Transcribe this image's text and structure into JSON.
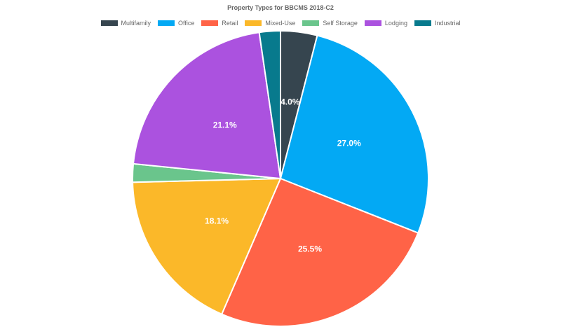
{
  "chart_data": {
    "type": "pie",
    "title": "Property Types for BBCMS 2018-C2",
    "legend_position": "top",
    "series": [
      {
        "name": "Multifamily",
        "value": 4.0,
        "color": "#36454f",
        "label": "4.0%"
      },
      {
        "name": "Office",
        "value": 27.0,
        "color": "#03a9f4",
        "label": "27.0%"
      },
      {
        "name": "Retail",
        "value": 25.5,
        "color": "#ff6347",
        "label": "25.5%"
      },
      {
        "name": "Mixed-Use",
        "value": 18.1,
        "color": "#fbb829",
        "label": "18.1%"
      },
      {
        "name": "Self Storage",
        "value": 2.0,
        "color": "#6ac58c",
        "label": ""
      },
      {
        "name": "Lodging",
        "value": 21.1,
        "color": "#ab52df",
        "label": "21.1%"
      },
      {
        "name": "Industrial",
        "value": 2.3,
        "color": "#087a8d",
        "label": ""
      }
    ]
  }
}
